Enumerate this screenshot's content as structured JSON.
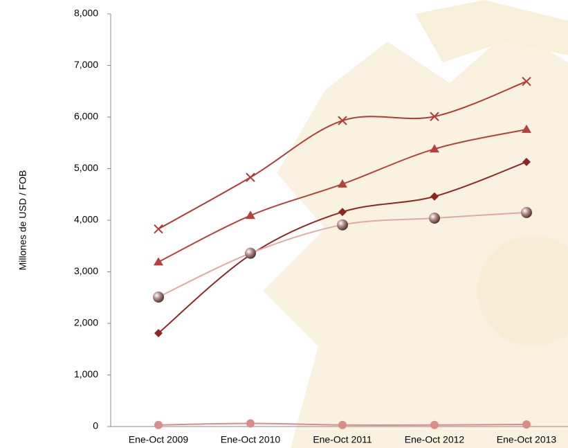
{
  "chart_data": {
    "type": "line",
    "y_label": "Millones de USD / FOB",
    "categories": [
      "Ene-Oct 2009",
      "Ene-Oct 2010",
      "Ene-Oct 2011",
      "Ene-Oct 2012",
      "Ene-Oct 2013"
    ],
    "ylim": [
      0,
      8000
    ],
    "yticks": [
      0,
      {
        "value": 1000,
        "label": "1,000"
      },
      {
        "value": 2000,
        "label": "2,000"
      },
      {
        "value": 3000,
        "label": "3,000"
      },
      {
        "value": 4000,
        "label": "4,000"
      },
      {
        "value": 5000,
        "label": "5,000"
      },
      {
        "value": 6000,
        "label": "6,000"
      },
      {
        "value": 7000,
        "label": "7,000"
      },
      {
        "value": 8000,
        "label": "8,000"
      }
    ],
    "smooth": true,
    "series": [
      {
        "color": "#b03a36",
        "marker": "x",
        "values": [
          3830,
          4830,
          5930,
          6010,
          6690
        ]
      },
      {
        "color": "#b5403c",
        "marker": "triangle",
        "values": [
          3190,
          4090,
          4700,
          5380,
          5760
        ]
      },
      {
        "color": "#8e2624",
        "marker": "diamond",
        "values": [
          1810,
          3330,
          4160,
          4460,
          5130
        ]
      },
      {
        "color": "#e0a8a6",
        "marker": "sphere",
        "values": [
          2510,
          3360,
          3910,
          4040,
          4150
        ]
      },
      {
        "color": "#d98c88",
        "marker": "circle",
        "values": [
          30,
          60,
          30,
          30,
          40
        ]
      }
    ]
  }
}
